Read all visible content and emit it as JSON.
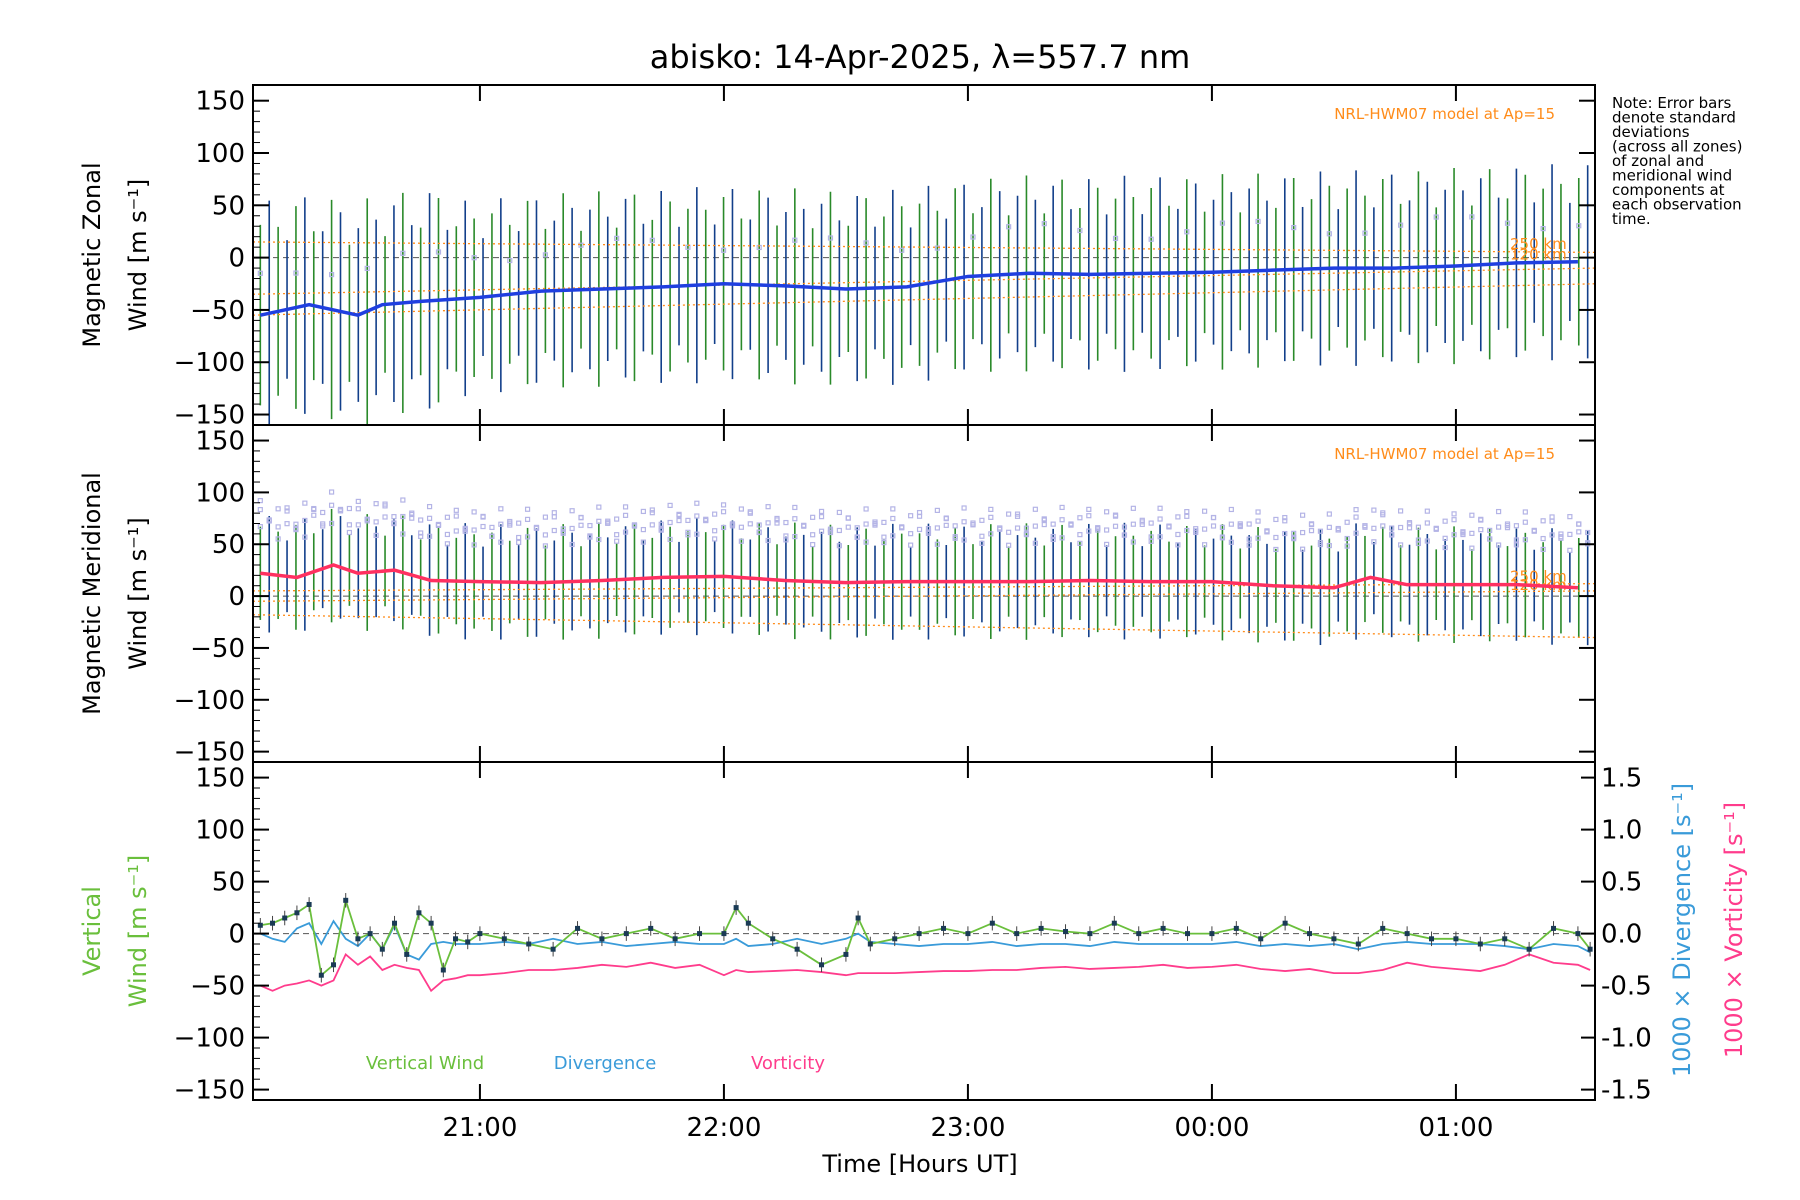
{
  "title": "abisko: 14-Apr-2025, λ=557.7 nm",
  "note": [
    "Note: Error bars",
    "denote standard",
    "deviations",
    "(across all zones)",
    "of zonal and",
    "meridional wind",
    "components at",
    "each observation",
    "time."
  ],
  "model_label": "NRL-HWM07 model at Ap=15",
  "altitude_labels": [
    "250 km",
    "120 km"
  ],
  "colors": {
    "zonal": "#1f3fe0",
    "meridional": "#ff3060",
    "errorbar": "#123f8a",
    "errorbar_green": "#2a8a2a",
    "zone_points": "#b4b4e6",
    "model": "#ff8c1a",
    "vertical": "#6abf3c",
    "divergence": "#3a9bd9",
    "vorticity": "#ff3c8c",
    "axes": "#000000"
  },
  "chart_data": [
    {
      "type": "line",
      "panel": "zonal",
      "ylabel": [
        "Magnetic Zonal",
        "Wind [m s⁻¹]"
      ],
      "ylim": [
        -160,
        165
      ],
      "yticks": [
        -150,
        -100,
        -50,
        0,
        50,
        100,
        150
      ],
      "xlim": [
        20.07,
        25.57
      ],
      "x": [
        20.1,
        20.2,
        20.3,
        20.4,
        20.5,
        20.6,
        20.75,
        21.0,
        21.25,
        21.5,
        21.75,
        22.0,
        22.25,
        22.5,
        22.75,
        23.0,
        23.25,
        23.5,
        23.75,
        24.0,
        24.25,
        24.5,
        24.75,
        25.0,
        25.25,
        25.5
      ],
      "series": [
        {
          "name": "",
          "values": [
            -55,
            -50,
            -45,
            -50,
            -55,
            -45,
            -42,
            -38,
            -32,
            -30,
            -28,
            -25,
            -27,
            -30,
            -28,
            -18,
            -15,
            -16,
            -15,
            -14,
            -12,
            -10,
            -10,
            -8,
            -5,
            -4
          ]
        }
      ],
      "error_halfwidth": 75
    },
    {
      "type": "line",
      "panel": "meridional",
      "ylabel": [
        "Magnetic Meridional",
        "Wind [m s⁻¹]"
      ],
      "ylim": [
        -160,
        165
      ],
      "yticks": [
        -150,
        -100,
        -50,
        0,
        50,
        100,
        150
      ],
      "xlim": [
        20.07,
        25.57
      ],
      "x": [
        20.1,
        20.25,
        20.4,
        20.5,
        20.65,
        20.8,
        21.0,
        21.25,
        21.5,
        21.75,
        22.0,
        22.25,
        22.5,
        22.75,
        23.0,
        23.25,
        23.5,
        23.75,
        24.0,
        24.25,
        24.5,
        24.65,
        24.8,
        25.0,
        25.25,
        25.5
      ],
      "series": [
        {
          "name": "",
          "values": [
            22,
            18,
            30,
            22,
            25,
            15,
            14,
            13,
            15,
            18,
            19,
            15,
            13,
            14,
            14,
            14,
            15,
            14,
            14,
            10,
            8,
            18,
            11,
            11,
            11,
            8
          ]
        }
      ],
      "error_halfwidth": 45
    },
    {
      "type": "line",
      "panel": "vertical",
      "ylabel": [
        "Vertical",
        "Wind [m s⁻¹]"
      ],
      "ylim": [
        -160,
        165
      ],
      "yticks": [
        -150,
        -100,
        -50,
        0,
        50,
        100,
        150
      ],
      "y2label_divergence": "1000 × Divergence [s⁻¹]",
      "y2label_vorticity": "1000 × Vorticity [s⁻¹]",
      "y2lim": [
        -1.6,
        1.65
      ],
      "y2ticks": [
        -1.5,
        -1.0,
        -0.5,
        0.0,
        0.5,
        1.0,
        1.5
      ],
      "xlim": [
        20.07,
        25.57
      ],
      "xticks": [
        21,
        22,
        23,
        24,
        25
      ],
      "xtick_labels": [
        "21:00",
        "22:00",
        "23:00",
        "00:00",
        "01:00"
      ],
      "xlabel": "Time [Hours UT]",
      "legend": [
        "Vertical Wind",
        "Divergence",
        "Vorticity"
      ],
      "x": [
        20.1,
        20.15,
        20.2,
        20.25,
        20.3,
        20.35,
        20.4,
        20.45,
        20.5,
        20.55,
        20.6,
        20.65,
        20.7,
        20.75,
        20.8,
        20.85,
        20.9,
        20.95,
        21.0,
        21.1,
        21.2,
        21.3,
        21.4,
        21.5,
        21.6,
        21.7,
        21.8,
        21.9,
        22.0,
        22.05,
        22.1,
        22.2,
        22.3,
        22.4,
        22.5,
        22.55,
        22.6,
        22.7,
        22.8,
        22.9,
        23.0,
        23.1,
        23.2,
        23.3,
        23.4,
        23.5,
        23.6,
        23.7,
        23.8,
        23.9,
        24.0,
        24.1,
        24.2,
        24.3,
        24.4,
        24.5,
        24.6,
        24.7,
        24.8,
        24.9,
        25.0,
        25.1,
        25.2,
        25.3,
        25.4,
        25.5,
        25.55
      ],
      "series": [
        {
          "name": "Vertical Wind",
          "values": [
            8,
            10,
            15,
            20,
            28,
            -40,
            -30,
            32,
            -5,
            0,
            -15,
            10,
            -20,
            20,
            10,
            -35,
            -5,
            -8,
            0,
            -5,
            -10,
            -15,
            5,
            -5,
            0,
            5,
            -5,
            0,
            0,
            25,
            10,
            -5,
            -15,
            -30,
            -20,
            15,
            -10,
            -5,
            0,
            5,
            0,
            10,
            0,
            5,
            2,
            0,
            10,
            0,
            5,
            0,
            0,
            5,
            -5,
            10,
            0,
            -5,
            -10,
            5,
            0,
            -5,
            -5,
            -10,
            -5,
            -15,
            5,
            0,
            -15
          ]
        },
        {
          "name": "Divergence",
          "values": [
            0.0,
            -0.05,
            -0.08,
            0.05,
            0.1,
            -0.1,
            0.12,
            -0.05,
            -0.12,
            0.0,
            -0.15,
            0.08,
            -0.2,
            -0.25,
            -0.1,
            -0.08,
            -0.1,
            -0.1,
            -0.1,
            -0.08,
            -0.1,
            -0.05,
            -0.1,
            -0.08,
            -0.12,
            -0.1,
            -0.08,
            -0.1,
            -0.1,
            -0.05,
            -0.12,
            -0.1,
            -0.05,
            -0.1,
            -0.05,
            0.0,
            -0.08,
            -0.1,
            -0.12,
            -0.1,
            -0.1,
            -0.08,
            -0.12,
            -0.1,
            -0.1,
            -0.12,
            -0.08,
            -0.1,
            -0.1,
            -0.1,
            -0.1,
            -0.08,
            -0.12,
            -0.1,
            -0.12,
            -0.1,
            -0.15,
            -0.1,
            -0.08,
            -0.1,
            -0.1,
            -0.1,
            -0.12,
            -0.15,
            -0.1,
            -0.12,
            -0.18
          ]
        },
        {
          "name": "Vorticity",
          "values": [
            -0.5,
            -0.55,
            -0.5,
            -0.48,
            -0.45,
            -0.5,
            -0.45,
            -0.2,
            -0.3,
            -0.22,
            -0.35,
            -0.3,
            -0.33,
            -0.35,
            -0.55,
            -0.45,
            -0.43,
            -0.4,
            -0.4,
            -0.38,
            -0.35,
            -0.35,
            -0.33,
            -0.3,
            -0.32,
            -0.28,
            -0.33,
            -0.3,
            -0.4,
            -0.35,
            -0.37,
            -0.36,
            -0.35,
            -0.37,
            -0.4,
            -0.38,
            -0.38,
            -0.38,
            -0.37,
            -0.36,
            -0.36,
            -0.35,
            -0.35,
            -0.33,
            -0.32,
            -0.34,
            -0.33,
            -0.32,
            -0.3,
            -0.33,
            -0.32,
            -0.3,
            -0.34,
            -0.36,
            -0.34,
            -0.38,
            -0.38,
            -0.35,
            -0.28,
            -0.32,
            -0.34,
            -0.36,
            -0.3,
            -0.2,
            -0.28,
            -0.3,
            -0.35
          ]
        }
      ]
    }
  ]
}
